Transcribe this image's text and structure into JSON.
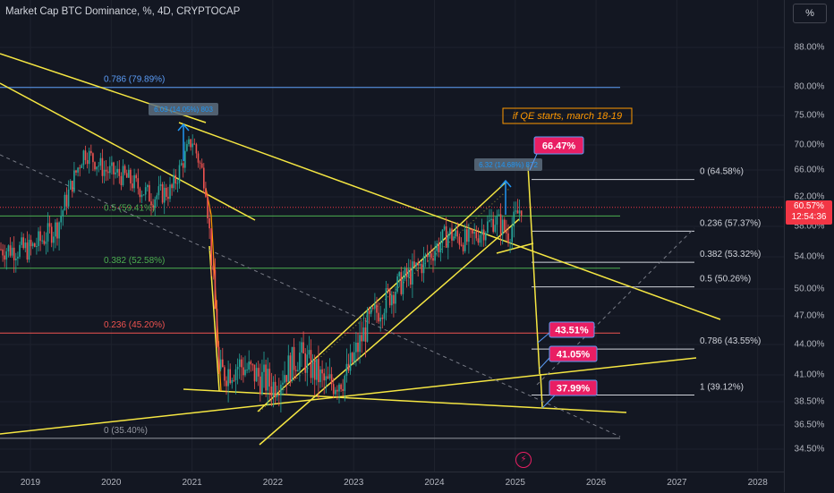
{
  "header": {
    "title": "Market Cap BTC Dominance, %, 4D, CRYPTOCAP",
    "scale_button": "%"
  },
  "current_price": {
    "value": "60.57%",
    "countdown": "12:54:36",
    "color": "#f23645"
  },
  "price_axis": {
    "ticks": [
      {
        "v": 88,
        "label": "88.00%"
      },
      {
        "v": 80,
        "label": "80.00%"
      },
      {
        "v": 75,
        "label": "75.00%"
      },
      {
        "v": 70,
        "label": "70.00%"
      },
      {
        "v": 66,
        "label": "66.00%"
      },
      {
        "v": 62,
        "label": "62.00%"
      },
      {
        "v": 58,
        "label": "58.00%"
      },
      {
        "v": 54,
        "label": "54.00%"
      },
      {
        "v": 50,
        "label": "50.00%"
      },
      {
        "v": 47,
        "label": "47.00%"
      },
      {
        "v": 44,
        "label": "44.00%"
      },
      {
        "v": 41,
        "label": "41.00%"
      },
      {
        "v": 38.5,
        "label": "38.50%"
      },
      {
        "v": 36.5,
        "label": "36.50%"
      },
      {
        "v": 34.5,
        "label": "34.50%"
      }
    ]
  },
  "time_axis": {
    "labels": [
      "2019",
      "2020",
      "2021",
      "2022",
      "2023",
      "2024",
      "2025",
      "2026",
      "2027",
      "2028"
    ]
  },
  "chart_data": {
    "type": "line",
    "title": "Market Cap BTC Dominance, %, 4D, CRYPTOCAP",
    "x": [
      "2019-01",
      "2019-05",
      "2019-09",
      "2019-12",
      "2020-03",
      "2020-07",
      "2020-10",
      "2021-01",
      "2021-03",
      "2021-05",
      "2021-08",
      "2022-01",
      "2022-05",
      "2022-09",
      "2022-12",
      "2023-03",
      "2023-07",
      "2023-11",
      "2024-03",
      "2024-06",
      "2024-10",
      "2024-12",
      "2025-02"
    ],
    "series": [
      {
        "values": [
          55,
          58,
          69,
          66,
          65,
          62,
          63,
          71,
          64,
          41,
          42,
          40,
          43,
          40,
          41,
          46,
          50,
          53,
          57,
          56,
          59,
          57,
          61
        ]
      }
    ],
    "ylim": [
      33.5,
      93
    ],
    "xlim": [
      "2018-08",
      "2028-06"
    ],
    "colors": {
      "up": "#26a69a",
      "down": "#ef5350",
      "trend": "#f5e642",
      "fib_top": "#5b9cf6",
      "fib_green": "#4caf50",
      "fib_red": "#ef5350"
    },
    "fib_left": [
      {
        "level": "0.786 (79.89%)",
        "value": 79.89,
        "color": "#5b9cf6"
      },
      {
        "level": "0.5 (59.41%)",
        "value": 59.41,
        "color": "#4caf50"
      },
      {
        "level": "0.382 (52.58%)",
        "value": 52.58,
        "color": "#4caf50"
      },
      {
        "level": "0.236 (45.20%)",
        "value": 45.2,
        "color": "#ef5350"
      },
      {
        "level": "0 (35.40%)",
        "value": 35.4,
        "color": "#9598a1"
      }
    ],
    "fib_right": [
      {
        "level": "0 (64.58%)",
        "value": 64.58
      },
      {
        "level": "0.236 (57.37%)",
        "value": 57.37
      },
      {
        "level": "0.382 (53.32%)",
        "value": 53.32
      },
      {
        "level": "0.5 (50.26%)",
        "value": 50.26
      },
      {
        "level": "0.786 (43.55%)",
        "value": 43.55
      },
      {
        "level": "1 (39.12%)",
        "value": 39.12
      }
    ],
    "annotations": [
      {
        "text": "if QE starts, march 18-19"
      },
      {
        "text": "66.47%"
      },
      {
        "text": "43.51%"
      },
      {
        "text": "41.05%"
      },
      {
        "text": "37.99%"
      },
      {
        "text": "6.03 (14.05%) 803"
      },
      {
        "text": "6.32 (14.68%) 872"
      }
    ]
  }
}
